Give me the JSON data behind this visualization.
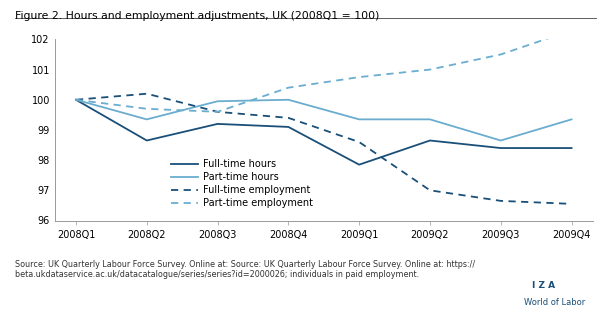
{
  "title": "Figure 2. Hours and employment adjustments, UK (2008Q1 = 100)",
  "x_labels": [
    "2008Q1",
    "2008Q2",
    "2008Q3",
    "2008Q4",
    "2009Q1",
    "2009Q2",
    "2009Q3",
    "2009Q4"
  ],
  "fulltime_hours": [
    100.0,
    98.65,
    99.2,
    99.1,
    97.85,
    98.65,
    98.4,
    98.4
  ],
  "parttime_hours": [
    100.0,
    99.35,
    99.95,
    100.0,
    99.35,
    99.35,
    98.65,
    99.35
  ],
  "fulltime_employment": [
    100.0,
    100.2,
    99.6,
    99.4,
    98.6,
    97.0,
    96.65,
    96.55
  ],
  "parttime_employment": [
    100.0,
    99.7,
    99.6,
    100.4,
    100.75,
    101.0,
    101.5,
    102.3
  ],
  "dark_blue": "#1a4f78",
  "light_blue": "#6aadcf",
  "border_blue": "#5b9bd5",
  "ylim": [
    96,
    102
  ],
  "yticks": [
    96,
    97,
    98,
    99,
    100,
    101,
    102
  ],
  "source_text_line1": "Source: UK Quarterly Labour Force Survey. Online at: Source: UK Quarterly Labour Force Survey. Online at: https://",
  "source_text_line2": "beta.ukdataservice.ac.uk/datacatalogue/series/series?id=2000026; individuals in paid employment.",
  "legend_labels": [
    "Full-time hours",
    "Part-time hours",
    "Full-time employment",
    "Part-time employment"
  ],
  "fig_width": 6.08,
  "fig_height": 3.15,
  "dpi": 100
}
